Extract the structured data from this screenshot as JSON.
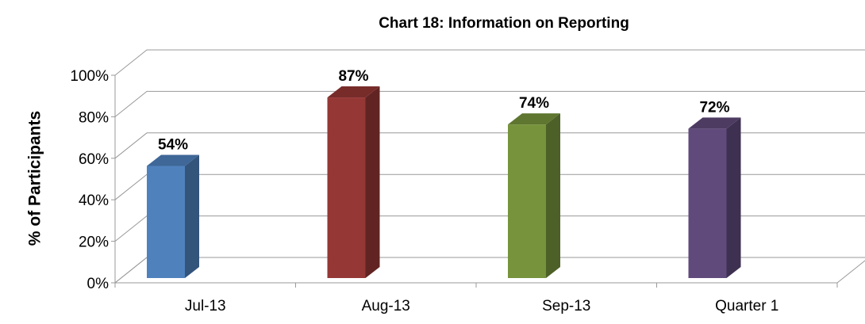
{
  "chart_data": {
    "type": "bar3d",
    "title": "Chart 18: Information on Reporting",
    "y_label": "% of Participants",
    "categories": [
      "Jul-13",
      "Aug-13",
      "Sep-13",
      "Quarter 1"
    ],
    "values": [
      54,
      87,
      74,
      72
    ],
    "value_labels": [
      "54%",
      "87%",
      "74%",
      "72%"
    ],
    "colors": [
      "#4f81bd",
      "#953735",
      "#77933c",
      "#604a7b"
    ],
    "ylim": [
      0,
      100
    ],
    "yticks": [
      {
        "value": 0,
        "label": "0%"
      },
      {
        "value": 20,
        "label": "20%"
      },
      {
        "value": 40,
        "label": "40%"
      },
      {
        "value": 60,
        "label": "60%"
      },
      {
        "value": 80,
        "label": "80%"
      },
      {
        "value": 100,
        "label": "100%"
      }
    ],
    "grid": true
  }
}
